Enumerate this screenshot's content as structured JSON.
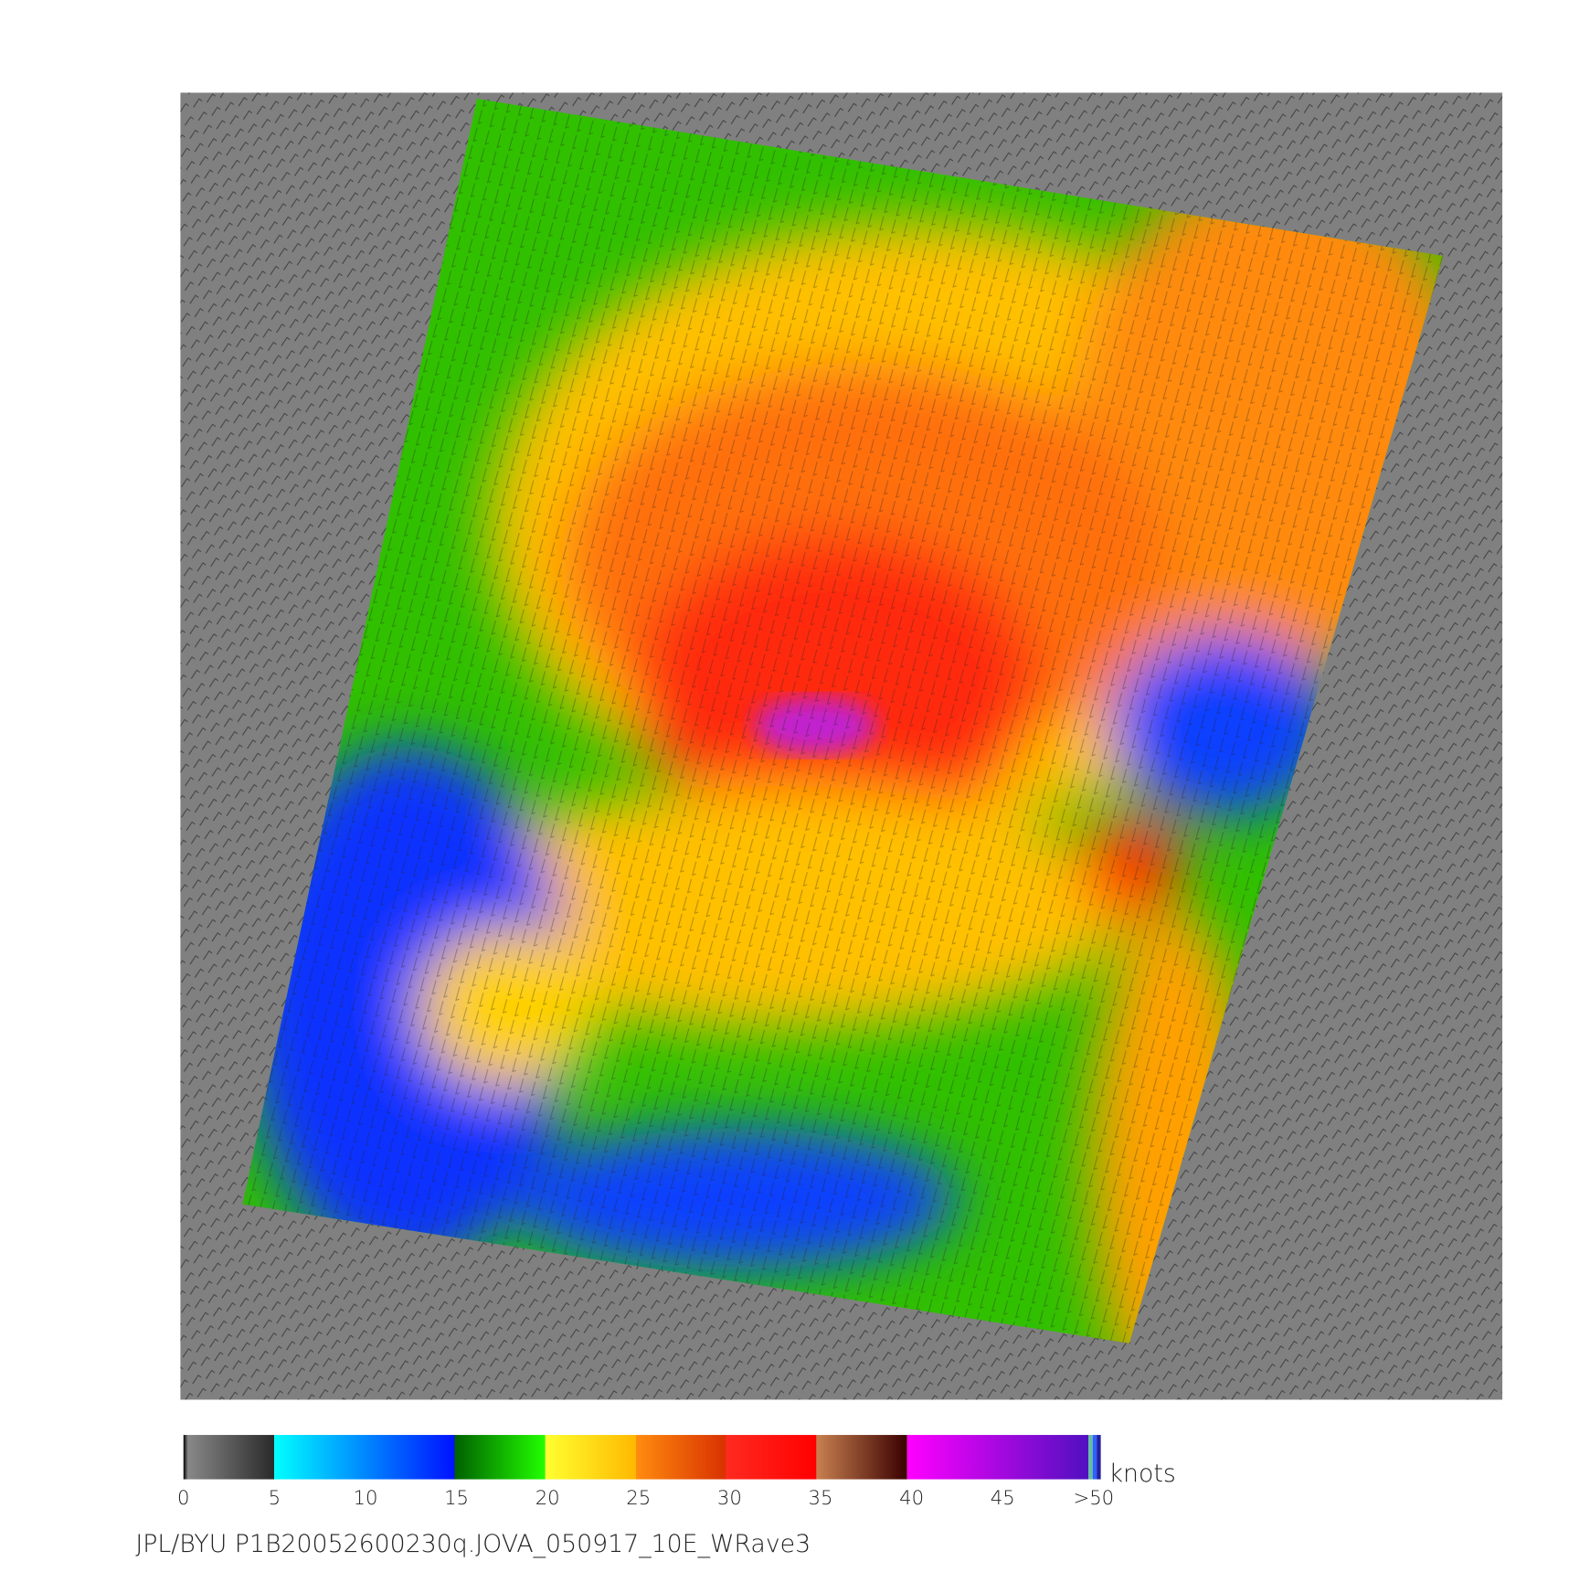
{
  "colorbar": {
    "ticks": [
      0,
      5,
      10,
      15,
      20,
      25,
      30,
      35,
      40,
      45,
      {
        "value": 50,
        "label": ">50"
      }
    ],
    "unit": "knots"
  },
  "footer": "JPL/BYU  P1B20052600230q.JOVA_050917_10E_WRave3"
}
